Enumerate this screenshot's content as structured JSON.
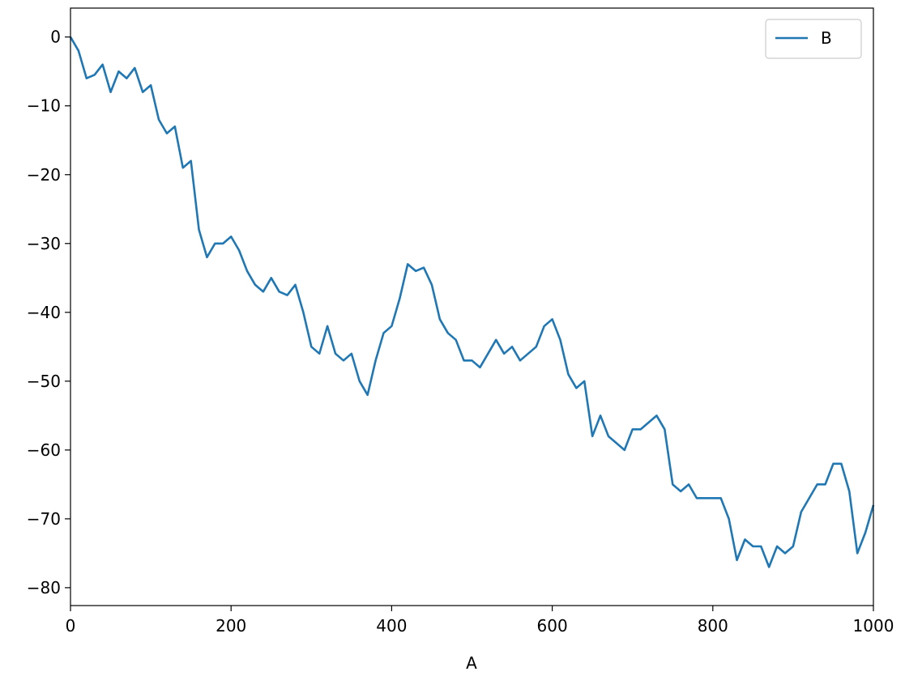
{
  "chart_data": {
    "type": "line",
    "xlabel": "A",
    "x": [
      0,
      10,
      20,
      30,
      40,
      50,
      60,
      70,
      80,
      90,
      100,
      110,
      120,
      130,
      140,
      150,
      160,
      170,
      180,
      190,
      200,
      210,
      220,
      230,
      240,
      250,
      260,
      270,
      280,
      290,
      300,
      310,
      320,
      330,
      340,
      350,
      360,
      370,
      380,
      390,
      400,
      410,
      420,
      430,
      440,
      450,
      460,
      470,
      480,
      490,
      500,
      510,
      520,
      530,
      540,
      550,
      560,
      570,
      580,
      590,
      600,
      610,
      620,
      630,
      640,
      650,
      660,
      670,
      680,
      690,
      700,
      710,
      720,
      730,
      740,
      750,
      760,
      770,
      780,
      790,
      800,
      810,
      820,
      830,
      840,
      850,
      860,
      870,
      880,
      890,
      900,
      910,
      920,
      930,
      940,
      950,
      960,
      970,
      980,
      990,
      1000
    ],
    "series": [
      {
        "name": "B",
        "color": "#1f77b4",
        "values": [
          0,
          -2,
          -6,
          -5.5,
          -4,
          -8,
          -5,
          -6,
          -4.5,
          -8,
          -7,
          -12,
          -14,
          -13,
          -19,
          -18,
          -28,
          -32,
          -30,
          -30,
          -29,
          -31,
          -34,
          -36,
          -37,
          -35,
          -37,
          -37.5,
          -36,
          -40,
          -45,
          -46,
          -42,
          -46,
          -47,
          -46,
          -50,
          -52,
          -47,
          -43,
          -42,
          -38,
          -33,
          -34,
          -33.5,
          -36,
          -41,
          -43,
          -44,
          -47,
          -47,
          -48,
          -46,
          -44,
          -46,
          -45,
          -47,
          -46,
          -45,
          -42,
          -41,
          -44,
          -49,
          -51,
          -50,
          -58,
          -55,
          -58,
          -59,
          -60,
          -57,
          -57,
          -56,
          -55,
          -57,
          -65,
          -66,
          -65,
          -67,
          -67,
          -67,
          -67,
          -70,
          -76,
          -73,
          -74,
          -74,
          -77,
          -74,
          -75,
          -74,
          -69,
          -67,
          -65,
          -65,
          -62,
          -62,
          -66,
          -75,
          -72,
          -68
        ]
      }
    ],
    "xlim": [
      0,
      1000
    ],
    "ylim": [
      -82.6,
      4.2
    ],
    "xticks": [
      0,
      200,
      400,
      600,
      800,
      1000
    ],
    "yticks": [
      0,
      {
        "value": -10,
        "label": "−10"
      },
      {
        "value": -20,
        "label": "−20"
      },
      {
        "value": -30,
        "label": "−30"
      },
      {
        "value": -40,
        "label": "−40"
      },
      {
        "value": -50,
        "label": "−50"
      },
      {
        "value": -60,
        "label": "−60"
      },
      {
        "value": -70,
        "label": "−70"
      },
      {
        "value": -80,
        "label": "−80"
      }
    ],
    "grid": false,
    "legend": "upper right"
  }
}
